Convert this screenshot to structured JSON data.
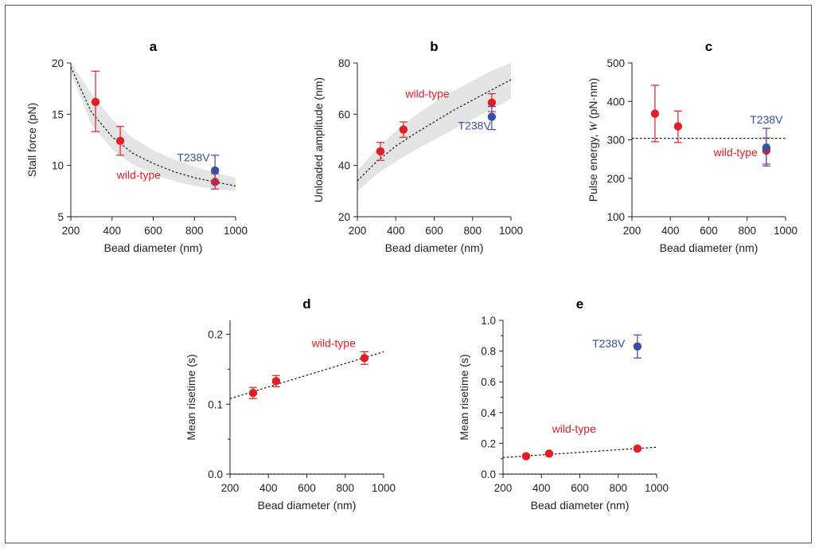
{
  "colors": {
    "wild_type": "#e31e24",
    "mutant": "#3b4ea0",
    "band": "#e4e4e4",
    "axis": "#222222"
  },
  "chart_data": [
    {
      "id": "a",
      "type": "scatter",
      "title": "a",
      "xlabel": "Bead diameter (nm)",
      "ylabel": "Stall force (pN)",
      "xlim": [
        200,
        1000
      ],
      "ylim": [
        5,
        20
      ],
      "xticks": [
        200,
        400,
        600,
        800,
        1000
      ],
      "yticks": [
        5,
        10,
        15,
        20
      ],
      "minor_yticks": [],
      "series": [
        {
          "name": "wild-type",
          "color": "#e31e24",
          "points": [
            {
              "x": 320,
              "y": 16.2,
              "err": [
                13.3,
                19.2
              ]
            },
            {
              "x": 440,
              "y": 12.4,
              "err": [
                11.0,
                13.8
              ]
            },
            {
              "x": 900,
              "y": 8.4,
              "err": [
                7.7,
                9.2
              ]
            }
          ]
        },
        {
          "name": "T238V",
          "color": "#3b4ea0",
          "points": [
            {
              "x": 900,
              "y": 9.5,
              "err": [
                8.2,
                11.0
              ]
            }
          ]
        }
      ],
      "fit": {
        "model": "inverse",
        "points": [
          [
            200,
            19.6
          ],
          [
            300,
            15.2
          ],
          [
            400,
            12.8
          ],
          [
            500,
            11.2
          ],
          [
            600,
            10.2
          ],
          [
            700,
            9.4
          ],
          [
            800,
            8.8
          ],
          [
            900,
            8.4
          ],
          [
            1000,
            8.0
          ]
        ]
      },
      "band": {
        "upper": [
          [
            200,
            20.0
          ],
          [
            300,
            17.0
          ],
          [
            400,
            14.5
          ],
          [
            500,
            12.7
          ],
          [
            600,
            11.5
          ],
          [
            700,
            10.6
          ],
          [
            800,
            9.9
          ],
          [
            900,
            9.3
          ],
          [
            1000,
            8.8
          ]
        ],
        "lower": [
          [
            200,
            19.0
          ],
          [
            300,
            14.0
          ],
          [
            400,
            11.6
          ],
          [
            500,
            10.1
          ],
          [
            600,
            9.1
          ],
          [
            700,
            8.5
          ],
          [
            800,
            8.0
          ],
          [
            900,
            7.7
          ],
          [
            1000,
            7.5
          ]
        ]
      },
      "labels": [
        {
          "text": "T238V",
          "x": 795,
          "y": 10.4,
          "color": "#3b4ea0"
        },
        {
          "text": "wild-type",
          "x": 530,
          "y": 8.7,
          "color": "#e31e24"
        }
      ]
    },
    {
      "id": "b",
      "type": "scatter",
      "title": "b",
      "xlabel": "Bead diameter (nm)",
      "ylabel": "Unloaded amplitude (nm)",
      "xlim": [
        200,
        1000
      ],
      "ylim": [
        20,
        80
      ],
      "xticks": [
        200,
        400,
        600,
        800,
        1000
      ],
      "yticks": [
        20,
        40,
        60,
        80
      ],
      "minor_yticks": [],
      "series": [
        {
          "name": "wild-type",
          "color": "#e31e24",
          "points": [
            {
              "x": 320,
              "y": 45.5,
              "err": [
                42.0,
                49.0
              ]
            },
            {
              "x": 440,
              "y": 54.0,
              "err": [
                51.0,
                57.0
              ]
            },
            {
              "x": 900,
              "y": 64.5,
              "err": [
                61.0,
                68.0
              ]
            }
          ]
        },
        {
          "name": "T238V",
          "color": "#3b4ea0",
          "points": [
            {
              "x": 900,
              "y": 59.0,
              "err": [
                54.0,
                63.0
              ]
            }
          ]
        }
      ],
      "fit": {
        "model": "power",
        "points": [
          [
            200,
            34.0
          ],
          [
            300,
            41.5
          ],
          [
            400,
            47.5
          ],
          [
            500,
            52.5
          ],
          [
            600,
            57.0
          ],
          [
            700,
            61.5
          ],
          [
            800,
            65.5
          ],
          [
            900,
            69.5
          ],
          [
            1000,
            73.5
          ]
        ]
      },
      "band": {
        "upper": [
          [
            200,
            38.0
          ],
          [
            300,
            46.5
          ],
          [
            400,
            53.5
          ],
          [
            500,
            59.5
          ],
          [
            600,
            64.5
          ],
          [
            700,
            69.0
          ],
          [
            800,
            73.0
          ],
          [
            900,
            77.0
          ],
          [
            1000,
            80.0
          ]
        ],
        "lower": [
          [
            200,
            30.0
          ],
          [
            300,
            36.5
          ],
          [
            400,
            41.5
          ],
          [
            500,
            46.0
          ],
          [
            600,
            50.0
          ],
          [
            700,
            54.0
          ],
          [
            800,
            58.0
          ],
          [
            900,
            62.0
          ],
          [
            1000,
            66.0
          ]
        ]
      },
      "labels": [
        {
          "text": "wild-type",
          "x": 565,
          "y": 66.5,
          "color": "#e31e24"
        },
        {
          "text": "T238V",
          "x": 810,
          "y": 54.0,
          "color": "#3b4ea0"
        }
      ]
    },
    {
      "id": "c",
      "type": "scatter",
      "title": "c",
      "xlabel": "Bead diameter (nm)",
      "ylabel": "Pulse energy, W (pN·nm)",
      "ylabel_parts": [
        "Pulse energy, ",
        "W",
        " (pN·nm)"
      ],
      "xlim": [
        200,
        1000
      ],
      "ylim": [
        100,
        500
      ],
      "xticks": [
        200,
        400,
        600,
        800,
        1000
      ],
      "yticks": [
        100,
        200,
        300,
        400,
        500
      ],
      "minor_yticks": [],
      "series": [
        {
          "name": "wild-type",
          "color": "#e31e24",
          "points": [
            {
              "x": 320,
              "y": 368,
              "err": [
                295,
                442
              ]
            },
            {
              "x": 440,
              "y": 335,
              "err": [
                293,
                375
              ]
            },
            {
              "x": 900,
              "y": 272,
              "err": [
                237,
                305
              ]
            }
          ]
        },
        {
          "name": "T238V",
          "color": "#3b4ea0",
          "points": [
            {
              "x": 900,
              "y": 280,
              "err": [
                232,
                330
              ]
            }
          ]
        }
      ],
      "fit": {
        "model": "constant",
        "points": [
          [
            200,
            304
          ],
          [
            1000,
            304
          ]
        ]
      },
      "band": null,
      "labels": [
        {
          "text": "T238V",
          "x": 900,
          "y": 343,
          "color": "#3b4ea0"
        },
        {
          "text": "wild-type",
          "x": 740,
          "y": 258,
          "color": "#e31e24"
        }
      ]
    },
    {
      "id": "d",
      "type": "scatter",
      "title": "d",
      "xlabel": "Bead diameter (nm)",
      "ylabel": "Mean risetime (s)",
      "xlim": [
        200,
        1000
      ],
      "ylim": [
        0.0,
        0.22
      ],
      "xticks": [
        200,
        400,
        600,
        800,
        1000
      ],
      "yticks": [
        0.0,
        0.1,
        0.2
      ],
      "ytick_labels": [
        "0.0",
        "0.1",
        "0.2"
      ],
      "minor_yticks": [
        0.05,
        0.15
      ],
      "zero_line": true,
      "series": [
        {
          "name": "wild-type",
          "color": "#e31e24",
          "points": [
            {
              "x": 320,
              "y": 0.116,
              "err": [
                0.108,
                0.124
              ]
            },
            {
              "x": 440,
              "y": 0.133,
              "err": [
                0.125,
                0.141
              ]
            },
            {
              "x": 900,
              "y": 0.166,
              "err": [
                0.157,
                0.175
              ]
            }
          ]
        }
      ],
      "fit": {
        "model": "linear",
        "points": [
          [
            200,
            0.108
          ],
          [
            1000,
            0.175
          ]
        ]
      },
      "band": null,
      "labels": [
        {
          "text": "wild-type",
          "x": 740,
          "y": 0.182,
          "color": "#e31e24"
        }
      ]
    },
    {
      "id": "e",
      "type": "scatter",
      "title": "e",
      "xlabel": "Bead diameter (nm)",
      "ylabel": "Mean risetime (s)",
      "xlim": [
        200,
        1000
      ],
      "ylim": [
        0.0,
        1.0
      ],
      "xticks": [
        200,
        400,
        600,
        800,
        1000
      ],
      "yticks": [
        0.0,
        0.2,
        0.4,
        0.6,
        0.8,
        1.0
      ],
      "ytick_labels": [
        "0.0",
        "0.2",
        "0.4",
        "0.6",
        "0.8",
        "1.0"
      ],
      "minor_yticks": [
        0.1,
        0.3,
        0.5,
        0.7,
        0.9
      ],
      "zero_line": true,
      "series": [
        {
          "name": "wild-type",
          "color": "#e31e24",
          "points": [
            {
              "x": 320,
              "y": 0.116,
              "err": [
                0.108,
                0.124
              ]
            },
            {
              "x": 440,
              "y": 0.133,
              "err": [
                0.125,
                0.141
              ]
            },
            {
              "x": 900,
              "y": 0.166,
              "err": [
                0.157,
                0.175
              ]
            }
          ]
        },
        {
          "name": "T238V",
          "color": "#3b4ea0",
          "points": [
            {
              "x": 900,
              "y": 0.83,
              "err": [
                0.755,
                0.905
              ]
            }
          ]
        }
      ],
      "fit": {
        "model": "linear",
        "points": [
          [
            200,
            0.108
          ],
          [
            1000,
            0.175
          ]
        ]
      },
      "band": null,
      "labels": [
        {
          "text": "T238V",
          "x": 750,
          "y": 0.825,
          "color": "#3b4ea0"
        },
        {
          "text": "wild-type",
          "x": 570,
          "y": 0.27,
          "color": "#e31e24"
        }
      ]
    }
  ]
}
